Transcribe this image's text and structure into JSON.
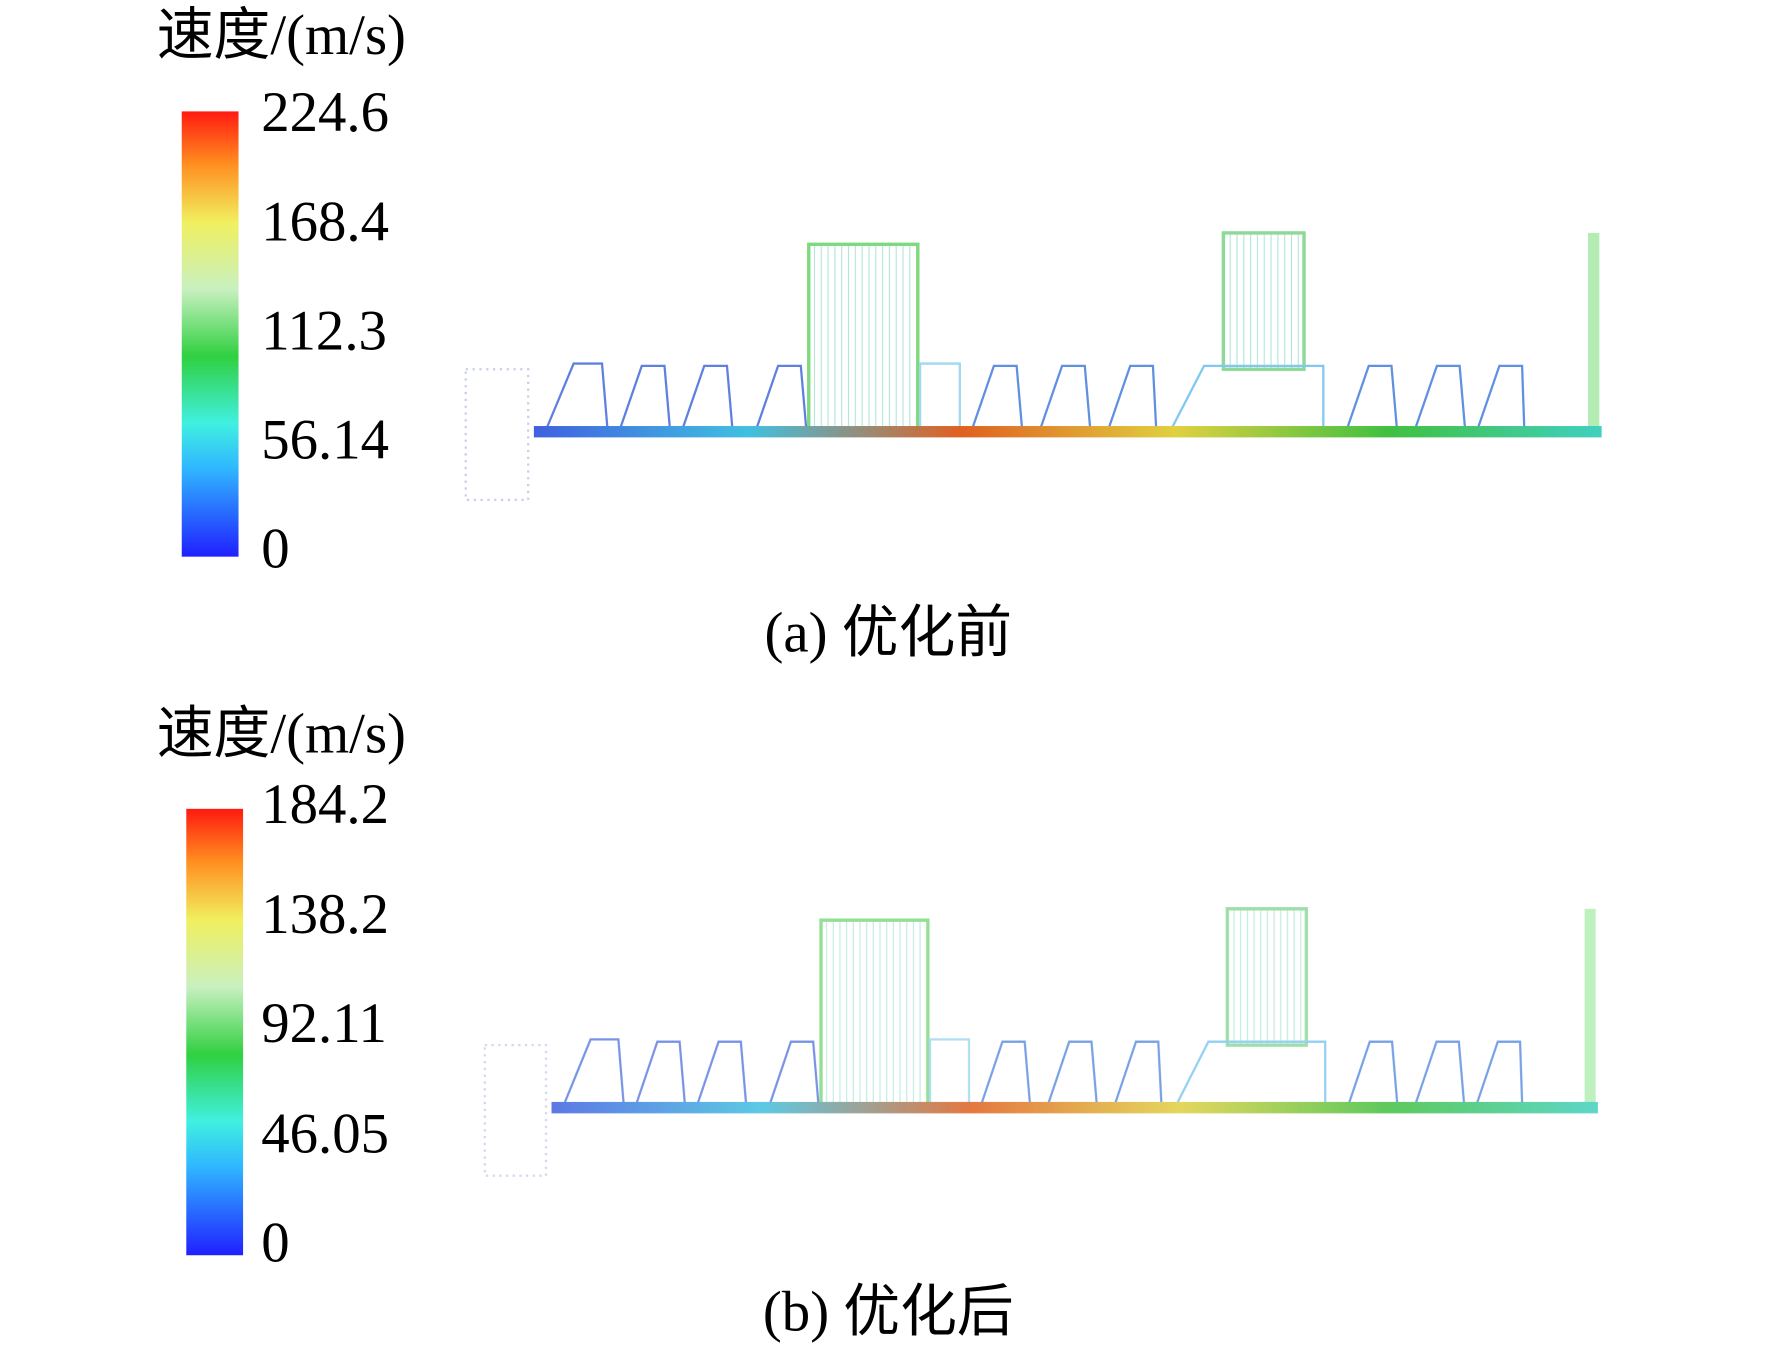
{
  "panels": [
    {
      "colorbar": {
        "title": "速度/(m/s)",
        "ticks": [
          "224.6",
          "168.4",
          "112.3",
          "56.14",
          "0"
        ]
      },
      "caption": "(a) 优化前"
    },
    {
      "colorbar": {
        "title": "速度/(m/s)",
        "ticks": [
          "184.2",
          "138.2",
          "92.11",
          "46.05",
          "0"
        ]
      },
      "caption": "(b) 优化后"
    }
  ]
}
